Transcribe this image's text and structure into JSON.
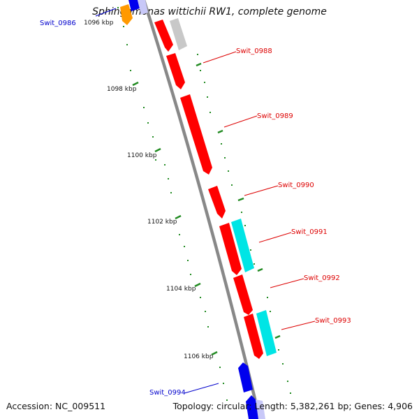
{
  "title": "Sphingomonas wittichii RW1, complete genome",
  "footer": {
    "accession": "Accession: NC_009511",
    "summary": "Topology: circular; Length: 5,382,261 bp; Genes: 4,906"
  },
  "colors": {
    "backbone": "#888888",
    "tick": "#228b22",
    "highlight_gene": "#ff0000",
    "secondary_gene": "#00e5e5",
    "other_gene": "#0000ee",
    "neighbor_orange": "#ff9900",
    "faded_gene": "#c8c8c8",
    "red_label": "#dd0000",
    "blue_label": "#0000cc"
  },
  "ruler": {
    "unit": "kbp",
    "labels": [
      "1096 kbp",
      "1098 kbp",
      "1100 kbp",
      "1102 kbp",
      "1104 kbp",
      "1106 kbp"
    ]
  },
  "gene_labels": [
    {
      "name": "Swit_0986",
      "color": "blue"
    },
    {
      "name": "Swit_0988",
      "color": "red"
    },
    {
      "name": "Swit_0989",
      "color": "red"
    },
    {
      "name": "Swit_0990",
      "color": "red"
    },
    {
      "name": "Swit_0991",
      "color": "red"
    },
    {
      "name": "Swit_0992",
      "color": "red"
    },
    {
      "name": "Swit_0993",
      "color": "red"
    },
    {
      "name": "Swit_0994",
      "color": "blue"
    }
  ]
}
